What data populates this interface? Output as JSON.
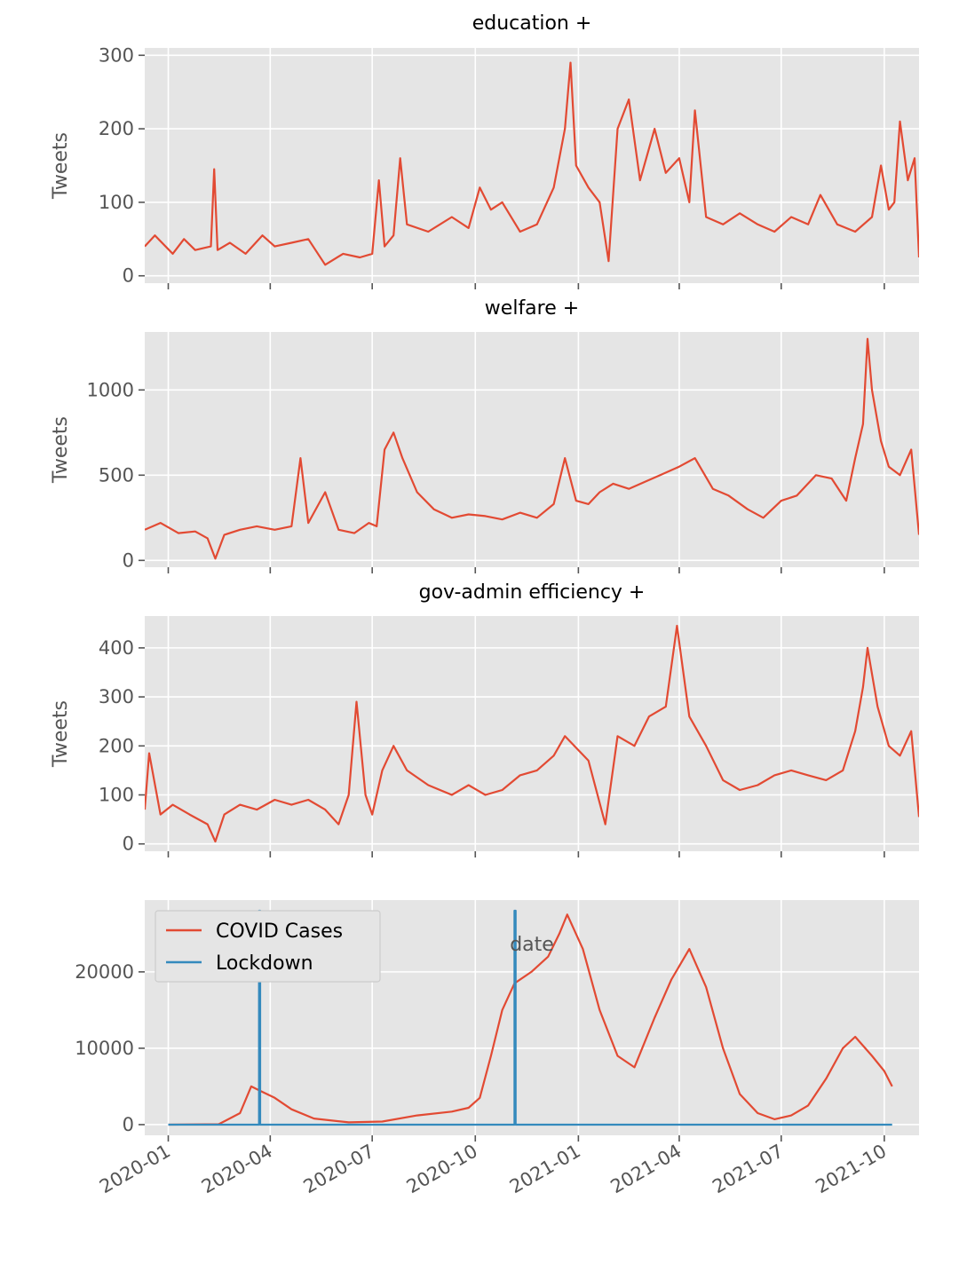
{
  "figure": {
    "xlabel": "date"
  },
  "chart_data": [
    {
      "type": "line",
      "title": "education +",
      "ylabel": "Tweets",
      "xlim": [
        "2019-12-11",
        "2021-11-01"
      ],
      "ylim": [
        -10,
        310
      ],
      "yticks": [
        0,
        100,
        200,
        300
      ],
      "xticks": [
        "2020-01",
        "2020-04",
        "2020-07",
        "2020-10",
        "2021-01",
        "2021-04",
        "2021-07",
        "2021-10"
      ],
      "series": [
        {
          "color": "#e24a33",
          "points": [
            [
              "2019-12-11",
              40
            ],
            [
              "2019-12-20",
              55
            ],
            [
              "2020-01-05",
              30
            ],
            [
              "2020-01-15",
              50
            ],
            [
              "2020-01-25",
              35
            ],
            [
              "2020-02-08",
              40
            ],
            [
              "2020-02-11",
              145
            ],
            [
              "2020-02-14",
              35
            ],
            [
              "2020-02-25",
              45
            ],
            [
              "2020-03-10",
              30
            ],
            [
              "2020-03-25",
              55
            ],
            [
              "2020-04-05",
              40
            ],
            [
              "2020-04-20",
              45
            ],
            [
              "2020-05-05",
              50
            ],
            [
              "2020-05-20",
              15
            ],
            [
              "2020-06-05",
              30
            ],
            [
              "2020-06-20",
              25
            ],
            [
              "2020-07-01",
              30
            ],
            [
              "2020-07-07",
              130
            ],
            [
              "2020-07-12",
              40
            ],
            [
              "2020-07-20",
              55
            ],
            [
              "2020-07-26",
              160
            ],
            [
              "2020-08-01",
              70
            ],
            [
              "2020-08-20",
              60
            ],
            [
              "2020-09-10",
              80
            ],
            [
              "2020-09-25",
              65
            ],
            [
              "2020-10-05",
              120
            ],
            [
              "2020-10-15",
              90
            ],
            [
              "2020-10-25",
              100
            ],
            [
              "2020-11-10",
              60
            ],
            [
              "2020-11-25",
              70
            ],
            [
              "2020-12-10",
              120
            ],
            [
              "2020-12-20",
              200
            ],
            [
              "2020-12-25",
              290
            ],
            [
              "2020-12-30",
              150
            ],
            [
              "2021-01-10",
              120
            ],
            [
              "2021-01-20",
              100
            ],
            [
              "2021-01-28",
              20
            ],
            [
              "2021-02-05",
              200
            ],
            [
              "2021-02-15",
              240
            ],
            [
              "2021-02-25",
              130
            ],
            [
              "2021-03-10",
              200
            ],
            [
              "2021-03-20",
              140
            ],
            [
              "2021-04-01",
              160
            ],
            [
              "2021-04-10",
              100
            ],
            [
              "2021-04-15",
              225
            ],
            [
              "2021-04-25",
              80
            ],
            [
              "2021-05-10",
              70
            ],
            [
              "2021-05-25",
              85
            ],
            [
              "2021-06-10",
              70
            ],
            [
              "2021-06-25",
              60
            ],
            [
              "2021-07-10",
              80
            ],
            [
              "2021-07-25",
              70
            ],
            [
              "2021-08-05",
              110
            ],
            [
              "2021-08-20",
              70
            ],
            [
              "2021-09-05",
              60
            ],
            [
              "2021-09-20",
              80
            ],
            [
              "2021-09-28",
              150
            ],
            [
              "2021-10-05",
              90
            ],
            [
              "2021-10-10",
              100
            ],
            [
              "2021-10-15",
              210
            ],
            [
              "2021-10-22",
              130
            ],
            [
              "2021-10-28",
              160
            ],
            [
              "2021-11-01",
              25
            ]
          ]
        }
      ]
    },
    {
      "type": "line",
      "title": "welfare +",
      "ylabel": "Tweets",
      "xlim": [
        "2019-12-11",
        "2021-11-01"
      ],
      "ylim": [
        -40,
        1340
      ],
      "yticks": [
        0,
        500,
        1000
      ],
      "xticks": [
        "2020-01",
        "2020-04",
        "2020-07",
        "2020-10",
        "2021-01",
        "2021-04",
        "2021-07",
        "2021-10"
      ],
      "series": [
        {
          "color": "#e24a33",
          "points": [
            [
              "2019-12-11",
              180
            ],
            [
              "2019-12-25",
              220
            ],
            [
              "2020-01-10",
              160
            ],
            [
              "2020-01-25",
              170
            ],
            [
              "2020-02-05",
              130
            ],
            [
              "2020-02-12",
              10
            ],
            [
              "2020-02-20",
              150
            ],
            [
              "2020-03-05",
              180
            ],
            [
              "2020-03-20",
              200
            ],
            [
              "2020-04-05",
              180
            ],
            [
              "2020-04-20",
              200
            ],
            [
              "2020-04-28",
              600
            ],
            [
              "2020-05-05",
              220
            ],
            [
              "2020-05-20",
              400
            ],
            [
              "2020-06-01",
              180
            ],
            [
              "2020-06-15",
              160
            ],
            [
              "2020-06-28",
              220
            ],
            [
              "2020-07-05",
              200
            ],
            [
              "2020-07-12",
              650
            ],
            [
              "2020-07-20",
              750
            ],
            [
              "2020-07-28",
              600
            ],
            [
              "2020-08-10",
              400
            ],
            [
              "2020-08-25",
              300
            ],
            [
              "2020-09-10",
              250
            ],
            [
              "2020-09-25",
              270
            ],
            [
              "2020-10-10",
              260
            ],
            [
              "2020-10-25",
              240
            ],
            [
              "2020-11-10",
              280
            ],
            [
              "2020-11-25",
              250
            ],
            [
              "2020-12-10",
              330
            ],
            [
              "2020-12-20",
              600
            ],
            [
              "2020-12-30",
              350
            ],
            [
              "2021-01-10",
              330
            ],
            [
              "2021-01-20",
              400
            ],
            [
              "2021-02-01",
              450
            ],
            [
              "2021-02-15",
              420
            ],
            [
              "2021-03-01",
              460
            ],
            [
              "2021-03-15",
              500
            ],
            [
              "2021-04-01",
              550
            ],
            [
              "2021-04-15",
              600
            ],
            [
              "2021-05-01",
              420
            ],
            [
              "2021-05-15",
              380
            ],
            [
              "2021-06-01",
              300
            ],
            [
              "2021-06-15",
              250
            ],
            [
              "2021-07-01",
              350
            ],
            [
              "2021-07-15",
              380
            ],
            [
              "2021-08-01",
              500
            ],
            [
              "2021-08-15",
              480
            ],
            [
              "2021-08-28",
              350
            ],
            [
              "2021-09-05",
              600
            ],
            [
              "2021-09-12",
              800
            ],
            [
              "2021-09-16",
              1300
            ],
            [
              "2021-09-20",
              1000
            ],
            [
              "2021-09-28",
              700
            ],
            [
              "2021-10-05",
              550
            ],
            [
              "2021-10-15",
              500
            ],
            [
              "2021-10-25",
              650
            ],
            [
              "2021-11-01",
              150
            ]
          ]
        }
      ]
    },
    {
      "type": "line",
      "title": "gov-admin efficiency +",
      "ylabel": "Tweets",
      "xlim": [
        "2019-12-11",
        "2021-11-01"
      ],
      "ylim": [
        -15,
        465
      ],
      "yticks": [
        0,
        100,
        200,
        300,
        400
      ],
      "xticks": [
        "2020-01",
        "2020-04",
        "2020-07",
        "2020-10",
        "2021-01",
        "2021-04",
        "2021-07",
        "2021-10"
      ],
      "series": [
        {
          "color": "#e24a33",
          "points": [
            [
              "2019-12-11",
              70
            ],
            [
              "2019-12-15",
              185
            ],
            [
              "2019-12-25",
              60
            ],
            [
              "2020-01-05",
              80
            ],
            [
              "2020-01-20",
              60
            ],
            [
              "2020-02-05",
              40
            ],
            [
              "2020-02-12",
              5
            ],
            [
              "2020-02-20",
              60
            ],
            [
              "2020-03-05",
              80
            ],
            [
              "2020-03-20",
              70
            ],
            [
              "2020-04-05",
              90
            ],
            [
              "2020-04-20",
              80
            ],
            [
              "2020-05-05",
              90
            ],
            [
              "2020-05-20",
              70
            ],
            [
              "2020-06-01",
              40
            ],
            [
              "2020-06-10",
              100
            ],
            [
              "2020-06-17",
              290
            ],
            [
              "2020-06-25",
              100
            ],
            [
              "2020-07-01",
              60
            ],
            [
              "2020-07-10",
              150
            ],
            [
              "2020-07-20",
              200
            ],
            [
              "2020-08-01",
              150
            ],
            [
              "2020-08-20",
              120
            ],
            [
              "2020-09-10",
              100
            ],
            [
              "2020-09-25",
              120
            ],
            [
              "2020-10-10",
              100
            ],
            [
              "2020-10-25",
              110
            ],
            [
              "2020-11-10",
              140
            ],
            [
              "2020-11-25",
              150
            ],
            [
              "2020-12-10",
              180
            ],
            [
              "2020-12-20",
              220
            ],
            [
              "2021-01-10",
              170
            ],
            [
              "2021-01-25",
              40
            ],
            [
              "2021-02-05",
              220
            ],
            [
              "2021-02-20",
              200
            ],
            [
              "2021-03-05",
              260
            ],
            [
              "2021-03-20",
              280
            ],
            [
              "2021-03-30",
              445
            ],
            [
              "2021-04-10",
              260
            ],
            [
              "2021-04-25",
              200
            ],
            [
              "2021-05-10",
              130
            ],
            [
              "2021-05-25",
              110
            ],
            [
              "2021-06-10",
              120
            ],
            [
              "2021-06-25",
              140
            ],
            [
              "2021-07-10",
              150
            ],
            [
              "2021-07-25",
              140
            ],
            [
              "2021-08-10",
              130
            ],
            [
              "2021-08-25",
              150
            ],
            [
              "2021-09-05",
              230
            ],
            [
              "2021-09-12",
              320
            ],
            [
              "2021-09-16",
              400
            ],
            [
              "2021-09-25",
              280
            ],
            [
              "2021-10-05",
              200
            ],
            [
              "2021-10-15",
              180
            ],
            [
              "2021-10-25",
              230
            ],
            [
              "2021-11-01",
              55
            ]
          ]
        }
      ]
    },
    {
      "type": "line",
      "title": "",
      "ylabel": "",
      "xlim": [
        "2019-12-11",
        "2021-11-01"
      ],
      "ylim": [
        -1400,
        29400
      ],
      "yticks": [
        0,
        10000,
        20000
      ],
      "xticks": [
        "2020-01",
        "2020-04",
        "2020-07",
        "2020-10",
        "2021-01",
        "2021-04",
        "2021-07",
        "2021-10"
      ],
      "xtick_labels": [
        "2020-01",
        "2020-04",
        "2020-07",
        "2020-10",
        "2021-01",
        "2021-04",
        "2021-07",
        "2021-10"
      ],
      "legend": {
        "placement": "upper-left",
        "entries": [
          "COVID Cases",
          "Lockdown"
        ]
      },
      "series": [
        {
          "name": "COVID Cases",
          "color": "#e24a33",
          "points": [
            [
              "2020-01-01",
              0
            ],
            [
              "2020-02-15",
              50
            ],
            [
              "2020-03-05",
              1500
            ],
            [
              "2020-03-15",
              5000
            ],
            [
              "2020-03-22",
              4500
            ],
            [
              "2020-04-05",
              3500
            ],
            [
              "2020-04-20",
              2000
            ],
            [
              "2020-05-10",
              800
            ],
            [
              "2020-06-10",
              300
            ],
            [
              "2020-07-10",
              400
            ],
            [
              "2020-08-10",
              1200
            ],
            [
              "2020-09-10",
              1700
            ],
            [
              "2020-09-25",
              2200
            ],
            [
              "2020-10-05",
              3500
            ],
            [
              "2020-10-15",
              9000
            ],
            [
              "2020-10-25",
              15000
            ],
            [
              "2020-11-05",
              18500
            ],
            [
              "2020-11-20",
              20000
            ],
            [
              "2020-12-05",
              22000
            ],
            [
              "2020-12-15",
              25000
            ],
            [
              "2020-12-22",
              27500
            ],
            [
              "2021-01-05",
              23000
            ],
            [
              "2021-01-20",
              15000
            ],
            [
              "2021-02-05",
              9000
            ],
            [
              "2021-02-20",
              7500
            ],
            [
              "2021-03-10",
              14000
            ],
            [
              "2021-03-25",
              19000
            ],
            [
              "2021-04-10",
              23000
            ],
            [
              "2021-04-25",
              18000
            ],
            [
              "2021-05-10",
              10000
            ],
            [
              "2021-05-25",
              4000
            ],
            [
              "2021-06-10",
              1500
            ],
            [
              "2021-06-25",
              700
            ],
            [
              "2021-07-10",
              1200
            ],
            [
              "2021-07-25",
              2500
            ],
            [
              "2021-08-10",
              6000
            ],
            [
              "2021-08-25",
              10000
            ],
            [
              "2021-09-05",
              11500
            ],
            [
              "2021-09-20",
              9000
            ],
            [
              "2021-10-01",
              7000
            ],
            [
              "2021-10-08",
              5000
            ]
          ]
        },
        {
          "name": "Lockdown",
          "color": "#348abd",
          "points": [
            [
              "2020-01-01",
              0
            ],
            [
              "2020-03-22",
              0
            ],
            [
              "2020-03-22",
              28000
            ],
            [
              "2020-03-23",
              28000
            ],
            [
              "2020-03-23",
              0
            ],
            [
              "2020-11-05",
              0
            ],
            [
              "2020-11-05",
              28000
            ],
            [
              "2020-11-06",
              28000
            ],
            [
              "2020-11-06",
              0
            ],
            [
              "2021-10-08",
              0
            ]
          ]
        }
      ]
    }
  ]
}
